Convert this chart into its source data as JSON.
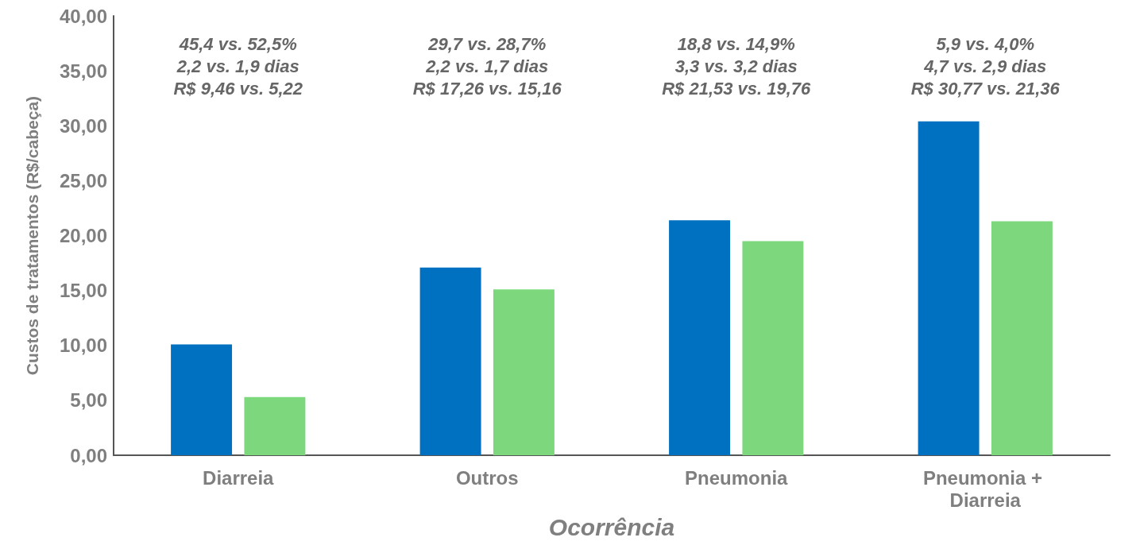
{
  "chart_data": {
    "type": "bar",
    "xlabel": "Ocorrência",
    "ylabel": "Custos de tratamentos (R$/cabeça)",
    "categories": [
      "Diarreia",
      "Outros",
      "Pneumonia",
      "Pneumonia + Diarreia"
    ],
    "series": [
      {
        "color": "#0070c0",
        "values": [
          10.1,
          17.1,
          21.4,
          30.4
        ]
      },
      {
        "color": "#7dd87d",
        "values": [
          5.3,
          15.1,
          19.5,
          21.3
        ]
      }
    ],
    "ylim": [
      0,
      40
    ],
    "yticks": [
      {
        "value": 0,
        "label": "0,00"
      },
      {
        "value": 5,
        "label": "5,00"
      },
      {
        "value": 10,
        "label": "10,00"
      },
      {
        "value": 15,
        "label": "15,00"
      },
      {
        "value": 20,
        "label": "20,00"
      },
      {
        "value": 25,
        "label": "25,00"
      },
      {
        "value": 30,
        "label": "30,00"
      },
      {
        "value": 35,
        "label": "35,00"
      },
      {
        "value": 40,
        "label": "40,00"
      }
    ],
    "grid": false,
    "annotations": [
      "45,4 vs. 52,5%\n2,2 vs. 1,9 dias\nR$ 9,46 vs. 5,22",
      "29,7 vs. 28,7%\n2,2 vs. 1,7 dias\nR$ 17,26 vs. 15,16",
      "18,8 vs. 14,9%\n3,3 vs. 3,2 dias\nR$ 21,53 vs. 19,76",
      "5,9 vs. 4,0%\n4,7 vs. 2,9 dias\nR$ 30,77 vs. 21,36"
    ]
  }
}
